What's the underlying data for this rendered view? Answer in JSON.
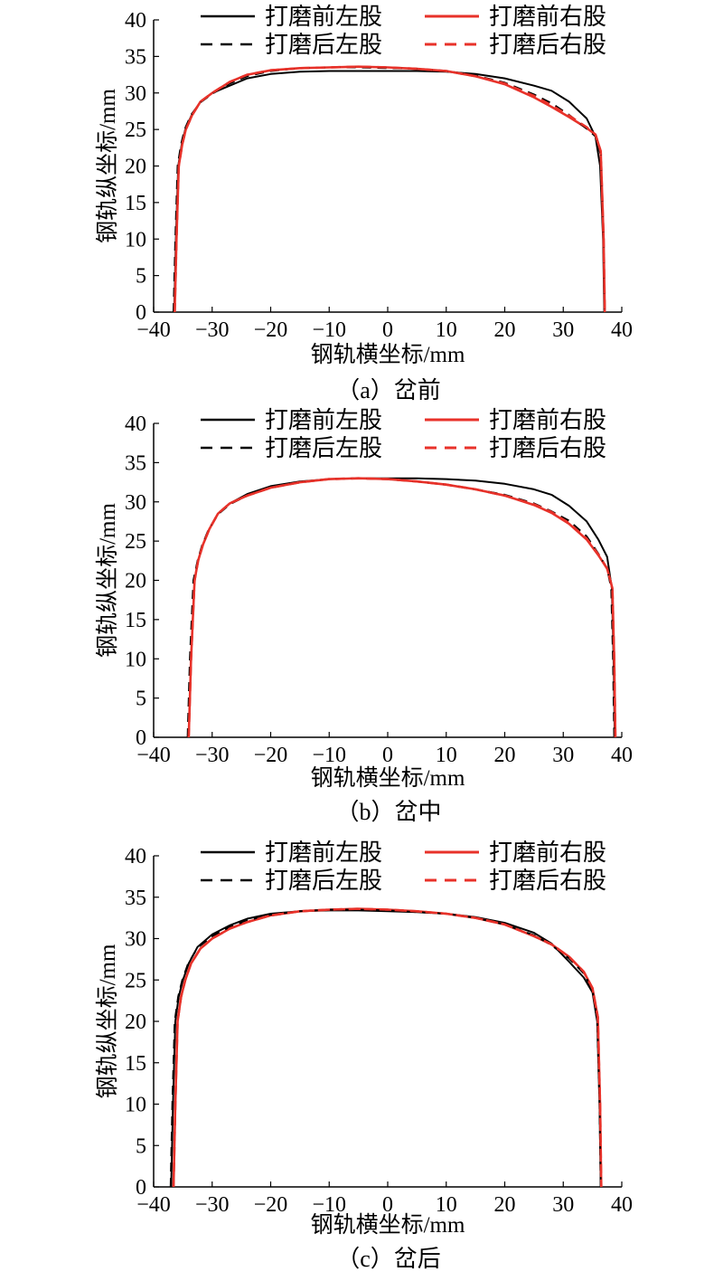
{
  "chart_data": [
    {
      "type": "line",
      "caption": "（a）岔前",
      "xlabel": "钢轨横坐标/mm",
      "ylabel": "钢轨纵坐标/mm",
      "xlim": [
        -40,
        40
      ],
      "ylim": [
        0,
        40
      ],
      "xticks": [
        -40,
        -30,
        -20,
        -10,
        0,
        10,
        20,
        30,
        40
      ],
      "yticks": [
        0,
        5,
        10,
        15,
        20,
        25,
        30,
        35,
        40
      ],
      "xtick_labels": [
        "−40",
        "−30",
        "−20",
        "−10",
        "0",
        "10",
        "20",
        "30",
        "40"
      ],
      "ytick_labels": [
        "0",
        "5",
        "10",
        "15",
        "20",
        "25",
        "30",
        "35",
        "40"
      ],
      "grid": false,
      "legend_position": "top",
      "series": [
        {
          "name": "打磨前左股",
          "color": "#000000",
          "dash": false,
          "x": [
            -36.5,
            -36.2,
            -35.8,
            -35.2,
            -34.6,
            -33.5,
            -32,
            -30,
            -27,
            -24,
            -20,
            -15,
            -10,
            -5,
            0,
            5,
            10,
            15,
            20,
            25,
            28,
            31,
            34,
            35.5,
            36.3,
            36.8,
            37
          ],
          "y": [
            0,
            10,
            20,
            23,
            25,
            27,
            28.8,
            30,
            31,
            32,
            32.6,
            32.9,
            33,
            33,
            33,
            33,
            32.9,
            32.6,
            32,
            31,
            30.3,
            28.8,
            26.5,
            24,
            20,
            10,
            0
          ]
        },
        {
          "name": "打磨前右股",
          "color": "#e8322a",
          "dash": false,
          "x": [
            -36.4,
            -36.1,
            -35.7,
            -35.1,
            -34.5,
            -33.4,
            -32,
            -30,
            -27,
            -24,
            -20,
            -15,
            -10,
            -5,
            0,
            5,
            10,
            15,
            20,
            25,
            28,
            31,
            34,
            35.5,
            36.4,
            36.9,
            37.1
          ],
          "y": [
            0,
            10,
            20,
            23,
            25,
            27,
            28.8,
            30,
            31.5,
            32.5,
            33.1,
            33.4,
            33.5,
            33.6,
            33.5,
            33.3,
            33,
            32.3,
            31.2,
            29.4,
            28.1,
            26.7,
            25.2,
            24.3,
            22,
            10,
            0
          ]
        },
        {
          "name": "打磨后左股",
          "color": "#000000",
          "dash": true,
          "x": [
            -36.6,
            -36.3,
            -35.9,
            -35.3,
            -34.7,
            -33.6,
            -32,
            -30,
            -27,
            -24,
            -20,
            -15,
            -10,
            -5,
            0,
            5,
            10,
            15,
            20,
            25,
            28,
            31,
            34,
            35.6,
            36.4,
            36.9,
            37
          ],
          "y": [
            0,
            10,
            20,
            23,
            25,
            27,
            28.7,
            29.9,
            31.3,
            32.3,
            33,
            33.4,
            33.5,
            33.5,
            33.4,
            33.3,
            33,
            32.4,
            31.4,
            29.8,
            28.6,
            27,
            25.1,
            24,
            21.5,
            10,
            0
          ]
        },
        {
          "name": "打磨后右股",
          "color": "#e8322a",
          "dash": true,
          "x": [
            -36.4,
            -36.1,
            -35.7,
            -35.1,
            -34.5,
            -33.4,
            -32,
            -30,
            -27,
            -24,
            -20,
            -15,
            -10,
            -5,
            0,
            5,
            10,
            15,
            20,
            25,
            28,
            31,
            34,
            35.5,
            36.4,
            36.9,
            37.1
          ],
          "y": [
            0,
            10,
            20,
            23,
            25,
            27,
            28.8,
            30,
            31.5,
            32.5,
            33.1,
            33.4,
            33.5,
            33.6,
            33.5,
            33.3,
            33,
            32.3,
            31.3,
            29.6,
            28.3,
            26.9,
            25.3,
            24.3,
            22,
            10,
            0
          ]
        }
      ]
    },
    {
      "type": "line",
      "caption": "（b）岔中",
      "xlabel": "钢轨横坐标/mm",
      "ylabel": "钢轨纵坐标/mm",
      "xlim": [
        -40,
        40
      ],
      "ylim": [
        0,
        40
      ],
      "xticks": [
        -40,
        -30,
        -20,
        -10,
        0,
        10,
        20,
        30,
        40
      ],
      "yticks": [
        0,
        5,
        10,
        15,
        20,
        25,
        30,
        35,
        40
      ],
      "xtick_labels": [
        "−40",
        "−30",
        "−20",
        "−10",
        "0",
        "10",
        "20",
        "30",
        "40"
      ],
      "ytick_labels": [
        "0",
        "5",
        "10",
        "15",
        "20",
        "25",
        "30",
        "35",
        "40"
      ],
      "grid": false,
      "legend_position": "top",
      "series": [
        {
          "name": "打磨前左股",
          "color": "#000000",
          "dash": false,
          "x": [
            -34,
            -33.6,
            -33,
            -32.4,
            -31.6,
            -30.5,
            -29,
            -27,
            -24,
            -20,
            -15,
            -10,
            -5,
            0,
            5,
            10,
            15,
            20,
            25,
            28,
            31,
            34,
            36,
            37.5,
            38.3,
            38.6,
            38.8
          ],
          "y": [
            0,
            10,
            20,
            22.5,
            24.5,
            26.5,
            28.5,
            29.8,
            31,
            32,
            32.6,
            32.9,
            33,
            33,
            33,
            32.9,
            32.7,
            32.3,
            31.6,
            30.9,
            29.5,
            27.5,
            25.2,
            23,
            19,
            10,
            0
          ]
        },
        {
          "name": "打磨前右股",
          "color": "#e8322a",
          "dash": false,
          "x": [
            -34,
            -33.6,
            -33,
            -32.4,
            -31.6,
            -30.5,
            -29,
            -27,
            -24,
            -20,
            -15,
            -10,
            -5,
            0,
            5,
            10,
            15,
            20,
            25,
            28,
            31,
            34,
            36,
            37.5,
            38.4,
            38.7,
            38.9
          ],
          "y": [
            0,
            10,
            20,
            22.5,
            24.5,
            26.5,
            28.5,
            29.8,
            30.8,
            31.8,
            32.5,
            32.9,
            33,
            32.9,
            32.6,
            32.2,
            31.6,
            30.8,
            29.6,
            28.6,
            27.2,
            25.2,
            23.2,
            21.5,
            19,
            10,
            0
          ]
        },
        {
          "name": "打磨后左股",
          "color": "#000000",
          "dash": true,
          "x": [
            -34.2,
            -33.8,
            -33.2,
            -32.5,
            -31.7,
            -30.6,
            -29,
            -27,
            -24,
            -20,
            -15,
            -10,
            -5,
            0,
            5,
            10,
            15,
            20,
            25,
            28,
            31,
            34,
            36,
            37.5,
            38.2,
            38.5,
            38.7
          ],
          "y": [
            0,
            10,
            20,
            22.5,
            24.5,
            26.5,
            28.4,
            29.7,
            30.8,
            31.8,
            32.5,
            32.9,
            33,
            32.9,
            32.6,
            32.2,
            31.6,
            30.9,
            29.8,
            28.8,
            27.6,
            25.6,
            23.4,
            21.5,
            19,
            10,
            0
          ]
        },
        {
          "name": "打磨后右股",
          "color": "#e8322a",
          "dash": true,
          "x": [
            -34,
            -33.6,
            -33,
            -32.4,
            -31.6,
            -30.5,
            -29,
            -27,
            -24,
            -20,
            -15,
            -10,
            -5,
            0,
            5,
            10,
            15,
            20,
            25,
            28,
            31,
            34,
            36,
            37.5,
            38.4,
            38.7,
            38.9
          ],
          "y": [
            0,
            10,
            20,
            22.5,
            24.5,
            26.5,
            28.5,
            29.8,
            30.8,
            31.8,
            32.5,
            32.9,
            33,
            32.9,
            32.6,
            32.2,
            31.6,
            30.8,
            29.7,
            28.7,
            27.3,
            25.3,
            23.3,
            21.5,
            19,
            10,
            0
          ]
        }
      ]
    },
    {
      "type": "line",
      "caption": "（c）岔后",
      "xlabel": "钢轨横坐标/mm",
      "ylabel": "钢轨纵坐标/mm",
      "xlim": [
        -40,
        40
      ],
      "ylim": [
        0,
        40
      ],
      "xticks": [
        -40,
        -30,
        -20,
        -10,
        0,
        10,
        20,
        30,
        40
      ],
      "yticks": [
        0,
        5,
        10,
        15,
        20,
        25,
        30,
        35,
        40
      ],
      "xtick_labels": [
        "−40",
        "−30",
        "−20",
        "−10",
        "0",
        "10",
        "20",
        "30",
        "40"
      ],
      "ytick_labels": [
        "0",
        "5",
        "10",
        "15",
        "20",
        "25",
        "30",
        "35",
        "40"
      ],
      "grid": false,
      "legend_position": "top",
      "series": [
        {
          "name": "打磨前左股",
          "color": "#000000",
          "dash": false,
          "x": [
            -37,
            -36.7,
            -36.3,
            -35.7,
            -35,
            -34,
            -32.5,
            -30,
            -27,
            -24,
            -20,
            -15,
            -10,
            -5,
            0,
            5,
            10,
            15,
            20,
            25,
            28,
            31,
            33.5,
            35,
            35.8,
            36.2,
            36.4
          ],
          "y": [
            0,
            10,
            20,
            23,
            25,
            27,
            29,
            30.5,
            31.6,
            32.4,
            33,
            33.3,
            33.4,
            33.4,
            33.3,
            33.2,
            33,
            32.6,
            31.9,
            30.7,
            29.4,
            27.2,
            25.3,
            23.5,
            20,
            10,
            0
          ]
        },
        {
          "name": "打磨前右股",
          "color": "#e8322a",
          "dash": false,
          "x": [
            -36.6,
            -36.3,
            -35.9,
            -35.3,
            -34.6,
            -33.6,
            -32,
            -30,
            -27,
            -24,
            -20,
            -15,
            -10,
            -5,
            0,
            5,
            10,
            15,
            20,
            25,
            28,
            31,
            33.5,
            35,
            35.9,
            36.3,
            36.5
          ],
          "y": [
            0,
            10,
            20,
            23,
            25,
            27,
            28.8,
            30,
            31.2,
            32,
            32.8,
            33.3,
            33.5,
            33.6,
            33.5,
            33.3,
            33,
            32.5,
            31.7,
            30.3,
            29.3,
            27.8,
            26,
            24,
            20.5,
            10,
            0
          ]
        },
        {
          "name": "打磨后左股",
          "color": "#000000",
          "dash": true,
          "x": [
            -37.1,
            -36.8,
            -36.4,
            -35.8,
            -35.1,
            -34.1,
            -32.5,
            -30,
            -27,
            -24,
            -20,
            -15,
            -10,
            -5,
            0,
            5,
            10,
            15,
            20,
            25,
            28,
            31,
            33.5,
            35,
            35.8,
            36.2,
            36.4
          ],
          "y": [
            0,
            10,
            20,
            23,
            25,
            27,
            28.9,
            30.3,
            31.4,
            32.2,
            32.9,
            33.3,
            33.5,
            33.5,
            33.4,
            33.2,
            33,
            32.5,
            31.7,
            30.4,
            29.2,
            27.6,
            25.8,
            23.8,
            20,
            10,
            0
          ]
        },
        {
          "name": "打磨后右股",
          "color": "#e8322a",
          "dash": true,
          "x": [
            -36.6,
            -36.3,
            -35.9,
            -35.3,
            -34.6,
            -33.6,
            -32,
            -30,
            -27,
            -24,
            -20,
            -15,
            -10,
            -5,
            0,
            5,
            10,
            15,
            20,
            25,
            28,
            31,
            33.5,
            35,
            35.9,
            36.3,
            36.5
          ],
          "y": [
            0,
            10,
            20,
            23,
            25,
            27,
            28.8,
            30,
            31.2,
            32,
            32.8,
            33.3,
            33.5,
            33.6,
            33.5,
            33.3,
            33,
            32.5,
            31.7,
            30.3,
            29.3,
            27.8,
            26,
            24,
            20.5,
            10,
            0
          ]
        }
      ]
    }
  ]
}
